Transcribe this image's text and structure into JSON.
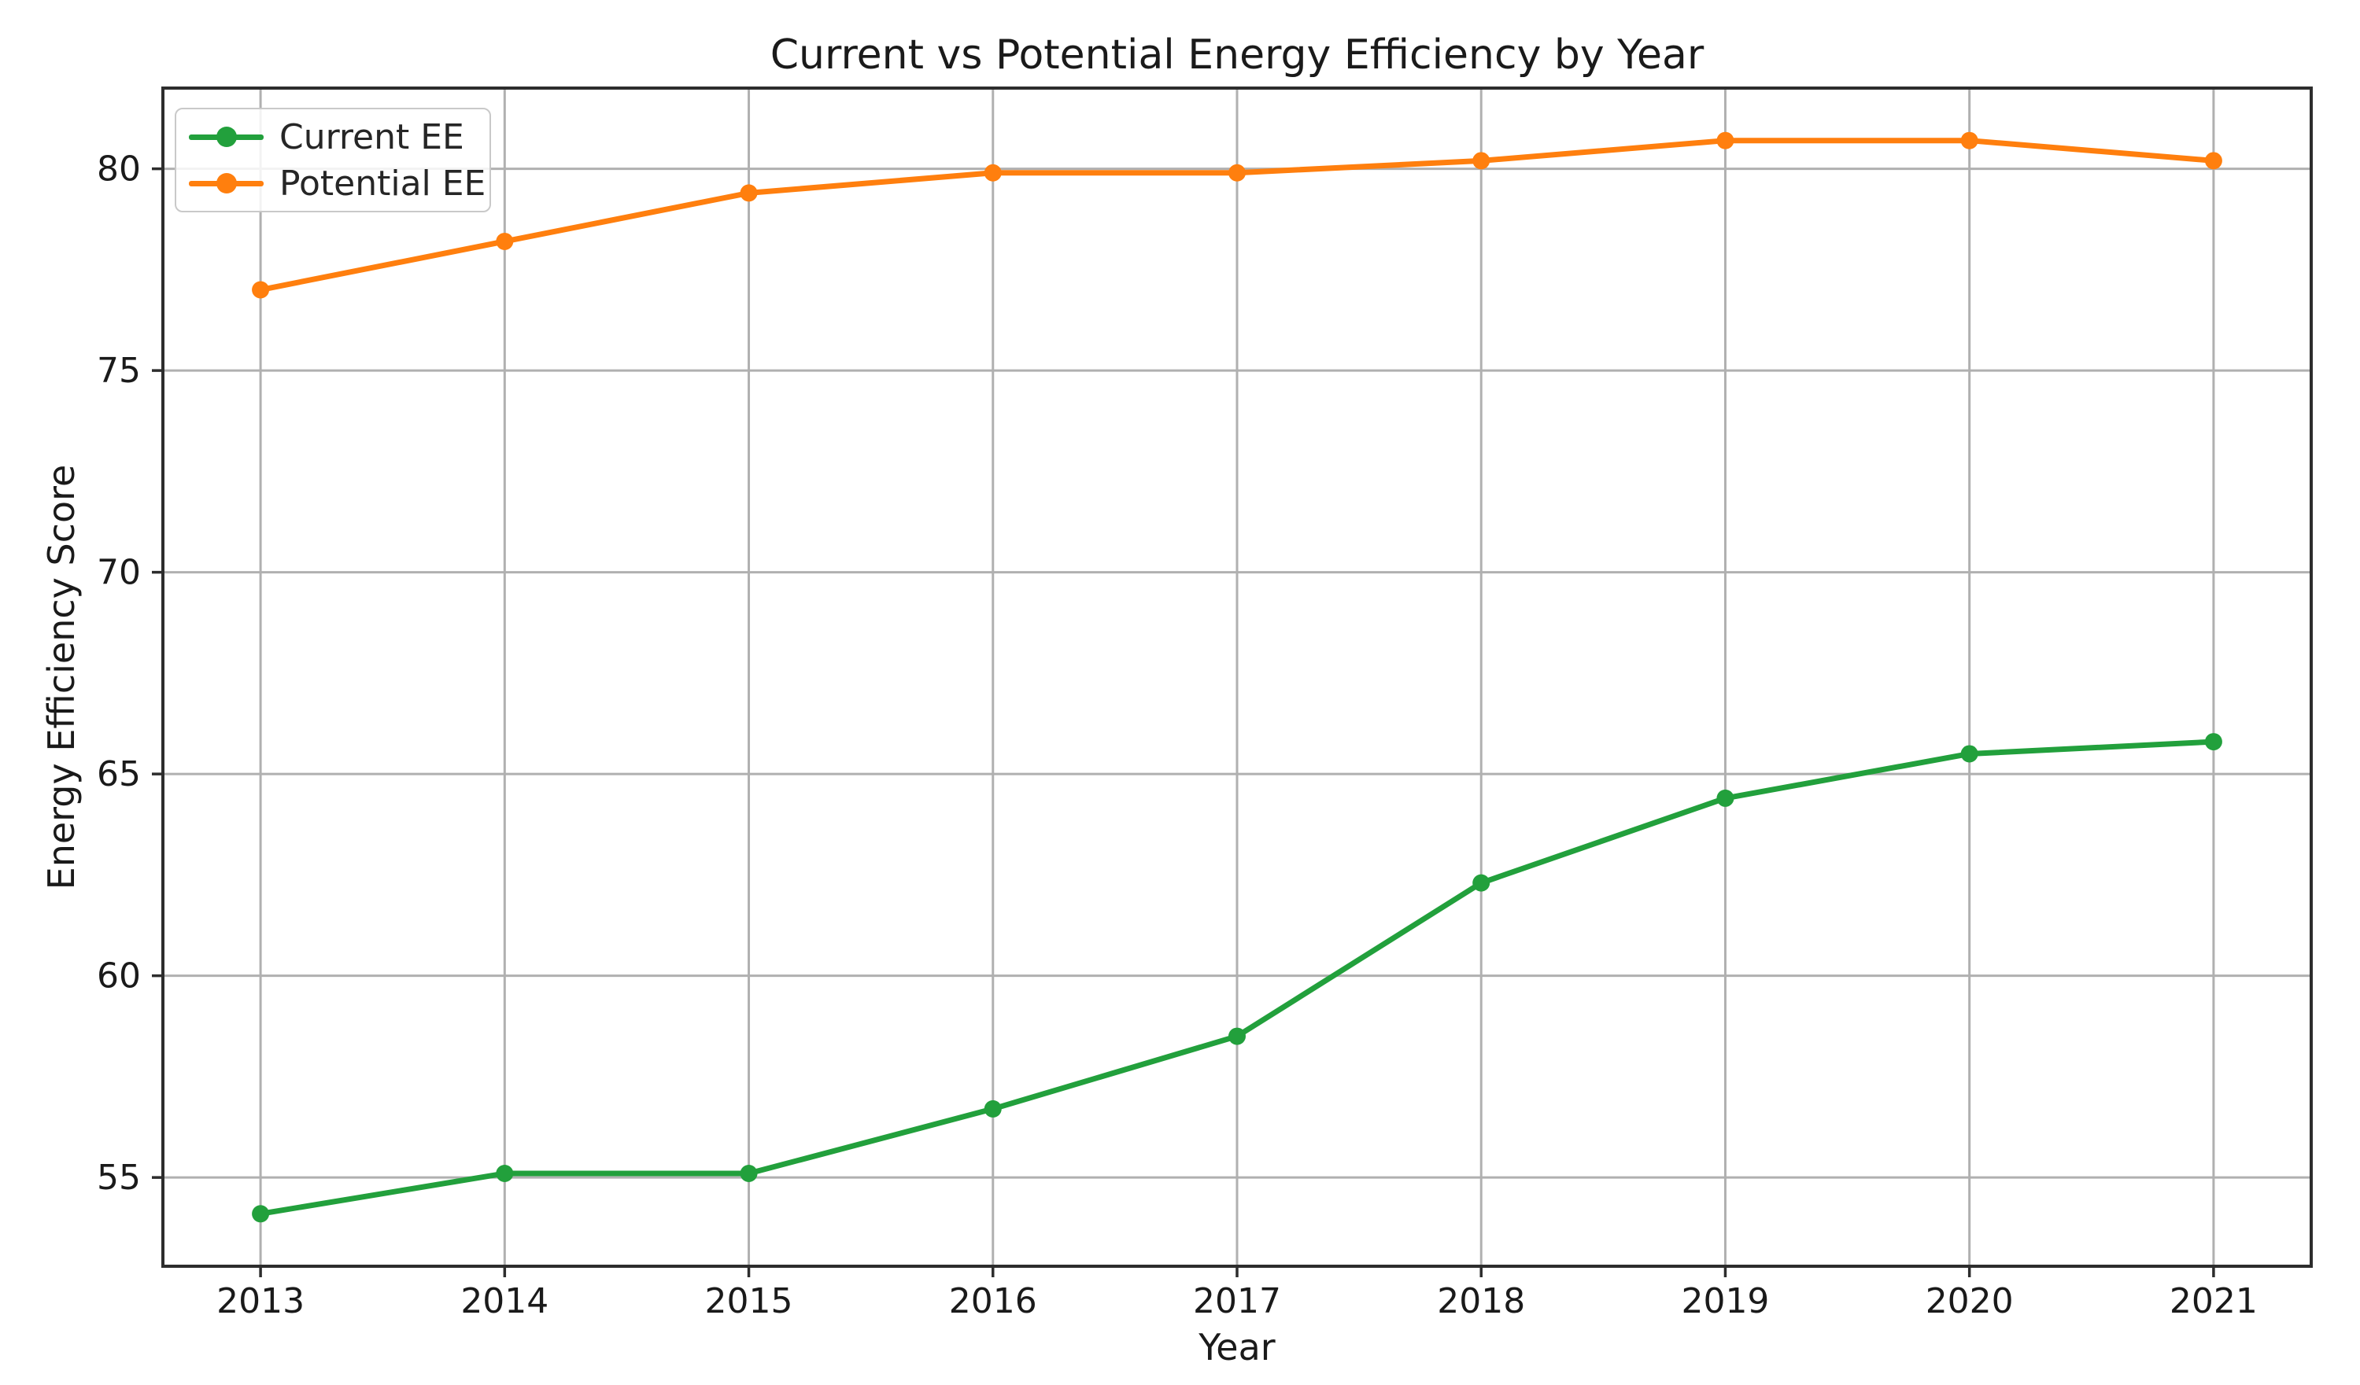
{
  "figure": {
    "title": "Current vs Potential Energy Efficiency by Year"
  },
  "chart_data": {
    "type": "line",
    "title": "Current vs Potential Energy Efficiency by Year",
    "xlabel": "Year",
    "ylabel": "Energy Efficiency Score",
    "categories": [
      "2013",
      "2014",
      "2015",
      "2016",
      "2017",
      "2018",
      "2019",
      "2020",
      "2021"
    ],
    "x": [
      2013,
      2014,
      2015,
      2016,
      2017,
      2018,
      2019,
      2020,
      2021
    ],
    "series": [
      {
        "name": "Current EE",
        "color": "#22a03c",
        "marker": "circle",
        "values": [
          54.1,
          55.1,
          55.1,
          56.7,
          58.5,
          62.3,
          64.4,
          65.5,
          65.8
        ]
      },
      {
        "name": "Potential EE",
        "color": "#ff7f0e",
        "marker": "circle",
        "values": [
          77.0,
          78.2,
          79.4,
          79.9,
          79.9,
          80.2,
          80.7,
          80.7,
          80.2
        ]
      }
    ],
    "y_ticks": [
      55,
      60,
      65,
      70,
      75,
      80
    ],
    "xlim": [
      2012.6,
      2021.4
    ],
    "ylim": [
      52.8,
      82.0
    ],
    "grid": true,
    "legend_position": "upper left"
  }
}
